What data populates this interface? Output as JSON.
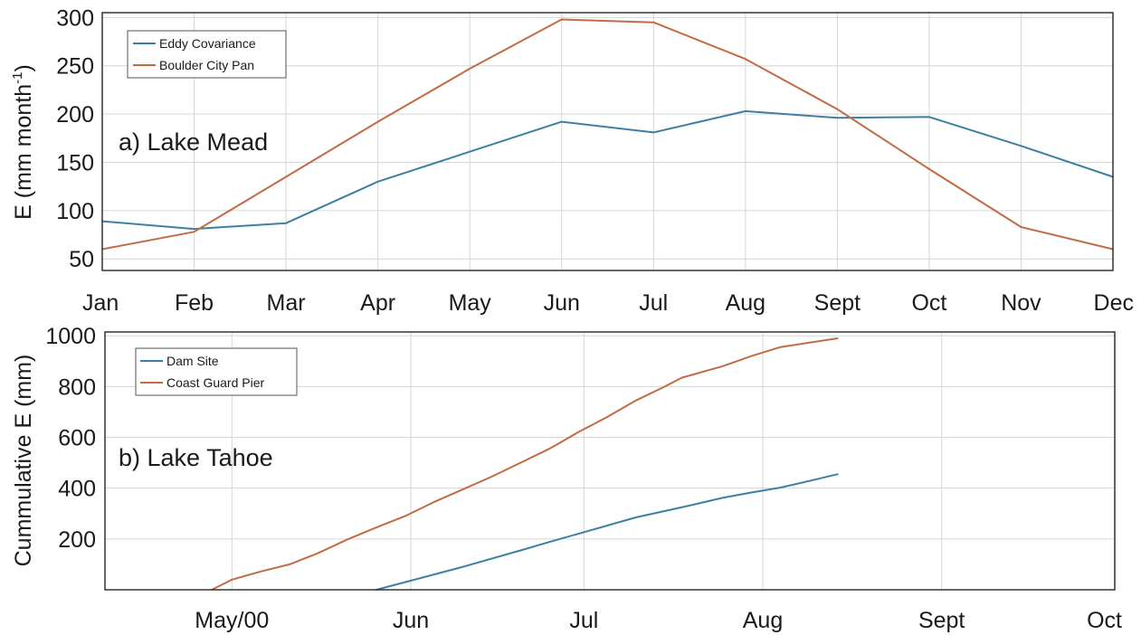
{
  "chart_data": [
    {
      "type": "line",
      "panel_label": "a) Lake Mead",
      "ylabel": "E (mm month",
      "ylabel_superscript": "-1",
      "ylabel_close": ")",
      "x": [
        "Jan",
        "Feb",
        "Mar",
        "Apr",
        "May",
        "Jun",
        "Jul",
        "Aug",
        "Sept",
        "Oct",
        "Nov",
        "Dec"
      ],
      "ylim": [
        38,
        305
      ],
      "yticks": [
        50,
        100,
        150,
        200,
        250,
        300
      ],
      "grid": true,
      "legend": "top-left",
      "series": [
        {
          "name": "Eddy Covariance",
          "color": "#3f7fa3",
          "values": [
            89,
            81,
            87,
            130,
            161,
            192,
            181,
            203,
            196,
            197,
            167,
            135
          ]
        },
        {
          "name": "Boulder City Pan",
          "color": "#c26b45",
          "values": [
            60,
            78,
            135,
            192,
            247,
            298,
            295,
            257,
            205,
            143,
            83,
            60
          ]
        }
      ]
    },
    {
      "type": "line",
      "panel_label": "b) Lake Tahoe",
      "ylabel": "Cummulative E (mm)",
      "xticks": [
        "May/00",
        "Jun",
        "Jul",
        "Aug",
        "Sept",
        "Oct"
      ],
      "ylim": [
        0,
        1015
      ],
      "yticks": [
        200,
        400,
        600,
        800,
        1000
      ],
      "grid": true,
      "legend": "top-left",
      "series": [
        {
          "name": "Dam Site",
          "color": "#3f7fa3",
          "points": [
            [
              25,
              0
            ],
            [
              30,
              30
            ],
            [
              40,
              90
            ],
            [
              50,
              155
            ],
            [
              55,
              188
            ],
            [
              60,
              220
            ],
            [
              70,
              285
            ],
            [
              80,
              335
            ],
            [
              85,
              362
            ],
            [
              90,
              383
            ],
            [
              95,
              402
            ],
            [
              100,
              428
            ],
            [
              105,
              455
            ]
          ]
        },
        {
          "name": "Coast Guard Pier",
          "color": "#c26b45",
          "points": [
            [
              -3.5,
              0
            ],
            [
              0,
              40
            ],
            [
              5,
              72
            ],
            [
              10,
              100
            ],
            [
              15,
              145
            ],
            [
              20,
              198
            ],
            [
              25,
              245
            ],
            [
              30,
              290
            ],
            [
              35,
              345
            ],
            [
              40,
              395
            ],
            [
              45,
              445
            ],
            [
              50,
              500
            ],
            [
              55,
              555
            ],
            [
              60,
              620
            ],
            [
              65,
              680
            ],
            [
              70,
              745
            ],
            [
              75,
              800
            ],
            [
              78,
              835
            ],
            [
              85,
              880
            ],
            [
              90,
              920
            ],
            [
              95,
              955
            ],
            [
              105,
              990
            ]
          ]
        }
      ]
    }
  ]
}
